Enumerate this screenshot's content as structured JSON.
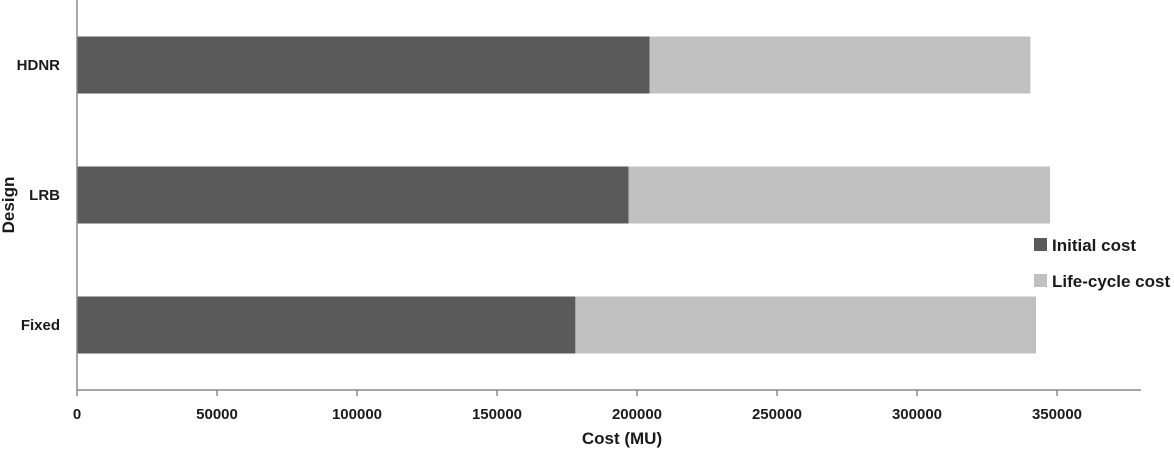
{
  "chart_data": {
    "type": "bar",
    "orientation": "horizontal",
    "stacked": true,
    "categories": [
      "HDNR",
      "LRB",
      "Fixed"
    ],
    "series": [
      {
        "name": "Initial cost",
        "values": [
          204500,
          197000,
          178000
        ],
        "color": "#5a5a5a"
      },
      {
        "name": "Life-cycle cost",
        "values": [
          136000,
          150500,
          164500
        ],
        "color": "#c0c0c0"
      }
    ],
    "xlabel": "Cost (MU)",
    "ylabel": "Design",
    "xlim": [
      0,
      380000
    ],
    "xticks": [
      0,
      50000,
      100000,
      150000,
      200000,
      250000,
      300000,
      350000
    ],
    "xtick_labels": [
      "0",
      "50000",
      "100000",
      "150000",
      "200000",
      "250000",
      "300000",
      "350000"
    ],
    "grid": false,
    "legend_position": "right"
  }
}
